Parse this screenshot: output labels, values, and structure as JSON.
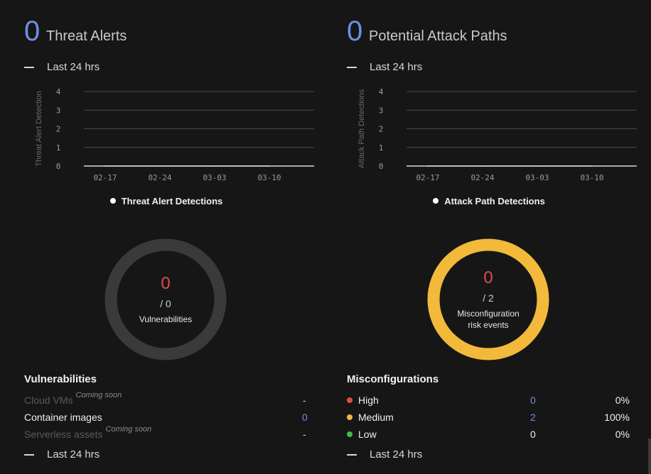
{
  "threat_alerts": {
    "count": "0",
    "title": "Threat Alerts",
    "period": "Last 24 hrs",
    "legend": "Threat Alert Detections"
  },
  "attack_paths": {
    "count": "0",
    "title": "Potential Attack Paths",
    "period": "Last 24 hrs",
    "legend": "Attack Path Detections"
  },
  "vulnerabilities": {
    "ring_value": "0",
    "ring_total": "/ 0",
    "ring_label": "Vulnerabilities",
    "ring_color": "#3a3a3a",
    "section_title": "Vulnerabilities",
    "rows": [
      {
        "label": "Cloud VMs",
        "tag": "Coming soon",
        "value": "-"
      },
      {
        "label": "Container images",
        "tag": "",
        "value": "0"
      },
      {
        "label": "Serverless assets",
        "tag": "Coming soon",
        "value": "-"
      }
    ],
    "period": "Last 24 hrs"
  },
  "misconfigurations": {
    "ring_value": "0",
    "ring_total": "/ 2",
    "ring_label_line1": "Misconfiguration",
    "ring_label_line2": "risk events",
    "ring_color": "#f2b93b",
    "section_title": "Misconfigurations",
    "rows": [
      {
        "label": "High",
        "color": "#e04b4b",
        "count": "0",
        "percent": "0%"
      },
      {
        "label": "Medium",
        "color": "#f2b93b",
        "count": "2",
        "percent": "100%"
      },
      {
        "label": "Low",
        "color": "#3cbf4c",
        "count": "0",
        "percent": "0%"
      }
    ],
    "period": "Last 24 hrs"
  },
  "chart_data": [
    {
      "type": "line",
      "ylabel": "Threat Alert Detection",
      "xlabel": "",
      "x": [
        "02-17",
        "02-24",
        "03-03",
        "03-10"
      ],
      "yticks": [
        0,
        1,
        2,
        3,
        4
      ],
      "ylim": [
        0,
        4
      ],
      "grid": true,
      "legend_position": "bottom",
      "series": [
        {
          "name": "Threat Alert Detections",
          "values": [
            0,
            0,
            0,
            0
          ]
        }
      ]
    },
    {
      "type": "line",
      "ylabel": "Attack Path Detections",
      "xlabel": "",
      "x": [
        "02-17",
        "02-24",
        "03-03",
        "03-10"
      ],
      "yticks": [
        0,
        1,
        2,
        3,
        4
      ],
      "ylim": [
        0,
        4
      ],
      "grid": true,
      "legend_position": "bottom",
      "series": [
        {
          "name": "Attack Path Detections",
          "values": [
            0,
            0,
            0,
            0
          ]
        }
      ]
    }
  ]
}
